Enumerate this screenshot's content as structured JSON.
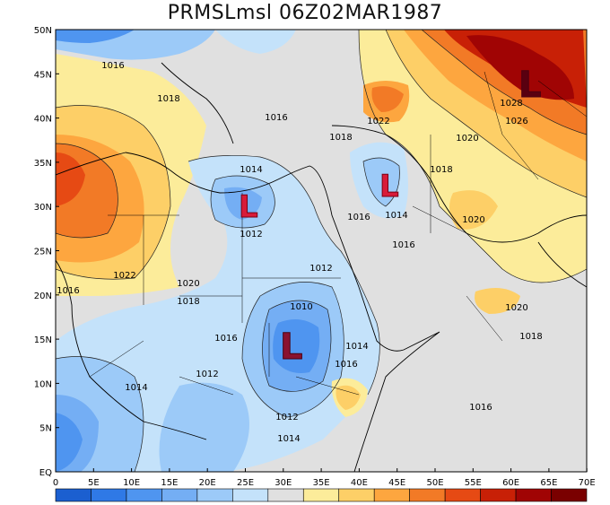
{
  "title": "PRMSLmsl 06Z02MAR1987",
  "lat_labels": [
    "50N",
    "45N",
    "40N",
    "35N",
    "30N",
    "25N",
    "20N",
    "15N",
    "10N",
    "5N",
    "EQ"
  ],
  "lon_labels": [
    "0",
    "5E",
    "10E",
    "15E",
    "20E",
    "25E",
    "30E",
    "35E",
    "40E",
    "45E",
    "50E",
    "55E",
    "60E",
    "65E",
    "70E"
  ],
  "isobar_labels": [
    "1016",
    "1018",
    "1016",
    "1018",
    "1022",
    "1028",
    "1026",
    "1020",
    "1014",
    "1018",
    "1012",
    "1016",
    "1014",
    "1016",
    "1020",
    "1022",
    "1020",
    "1018",
    "1016",
    "1012",
    "1010",
    "1020",
    "1018",
    "1016",
    "1014",
    "1016",
    "1012",
    "1014",
    "1016",
    "1012",
    "1014"
  ],
  "low_symbol": "L",
  "colorbar": [
    "#1b5fd0",
    "#2f79e6",
    "#4f95f0",
    "#74aef4",
    "#9ccaf8",
    "#c4e2fa",
    "#e0e0e0",
    "#fcec9a",
    "#fdcf67",
    "#fda63f",
    "#f27a26",
    "#e64a14",
    "#c82006",
    "#a00404",
    "#7a0000"
  ]
}
